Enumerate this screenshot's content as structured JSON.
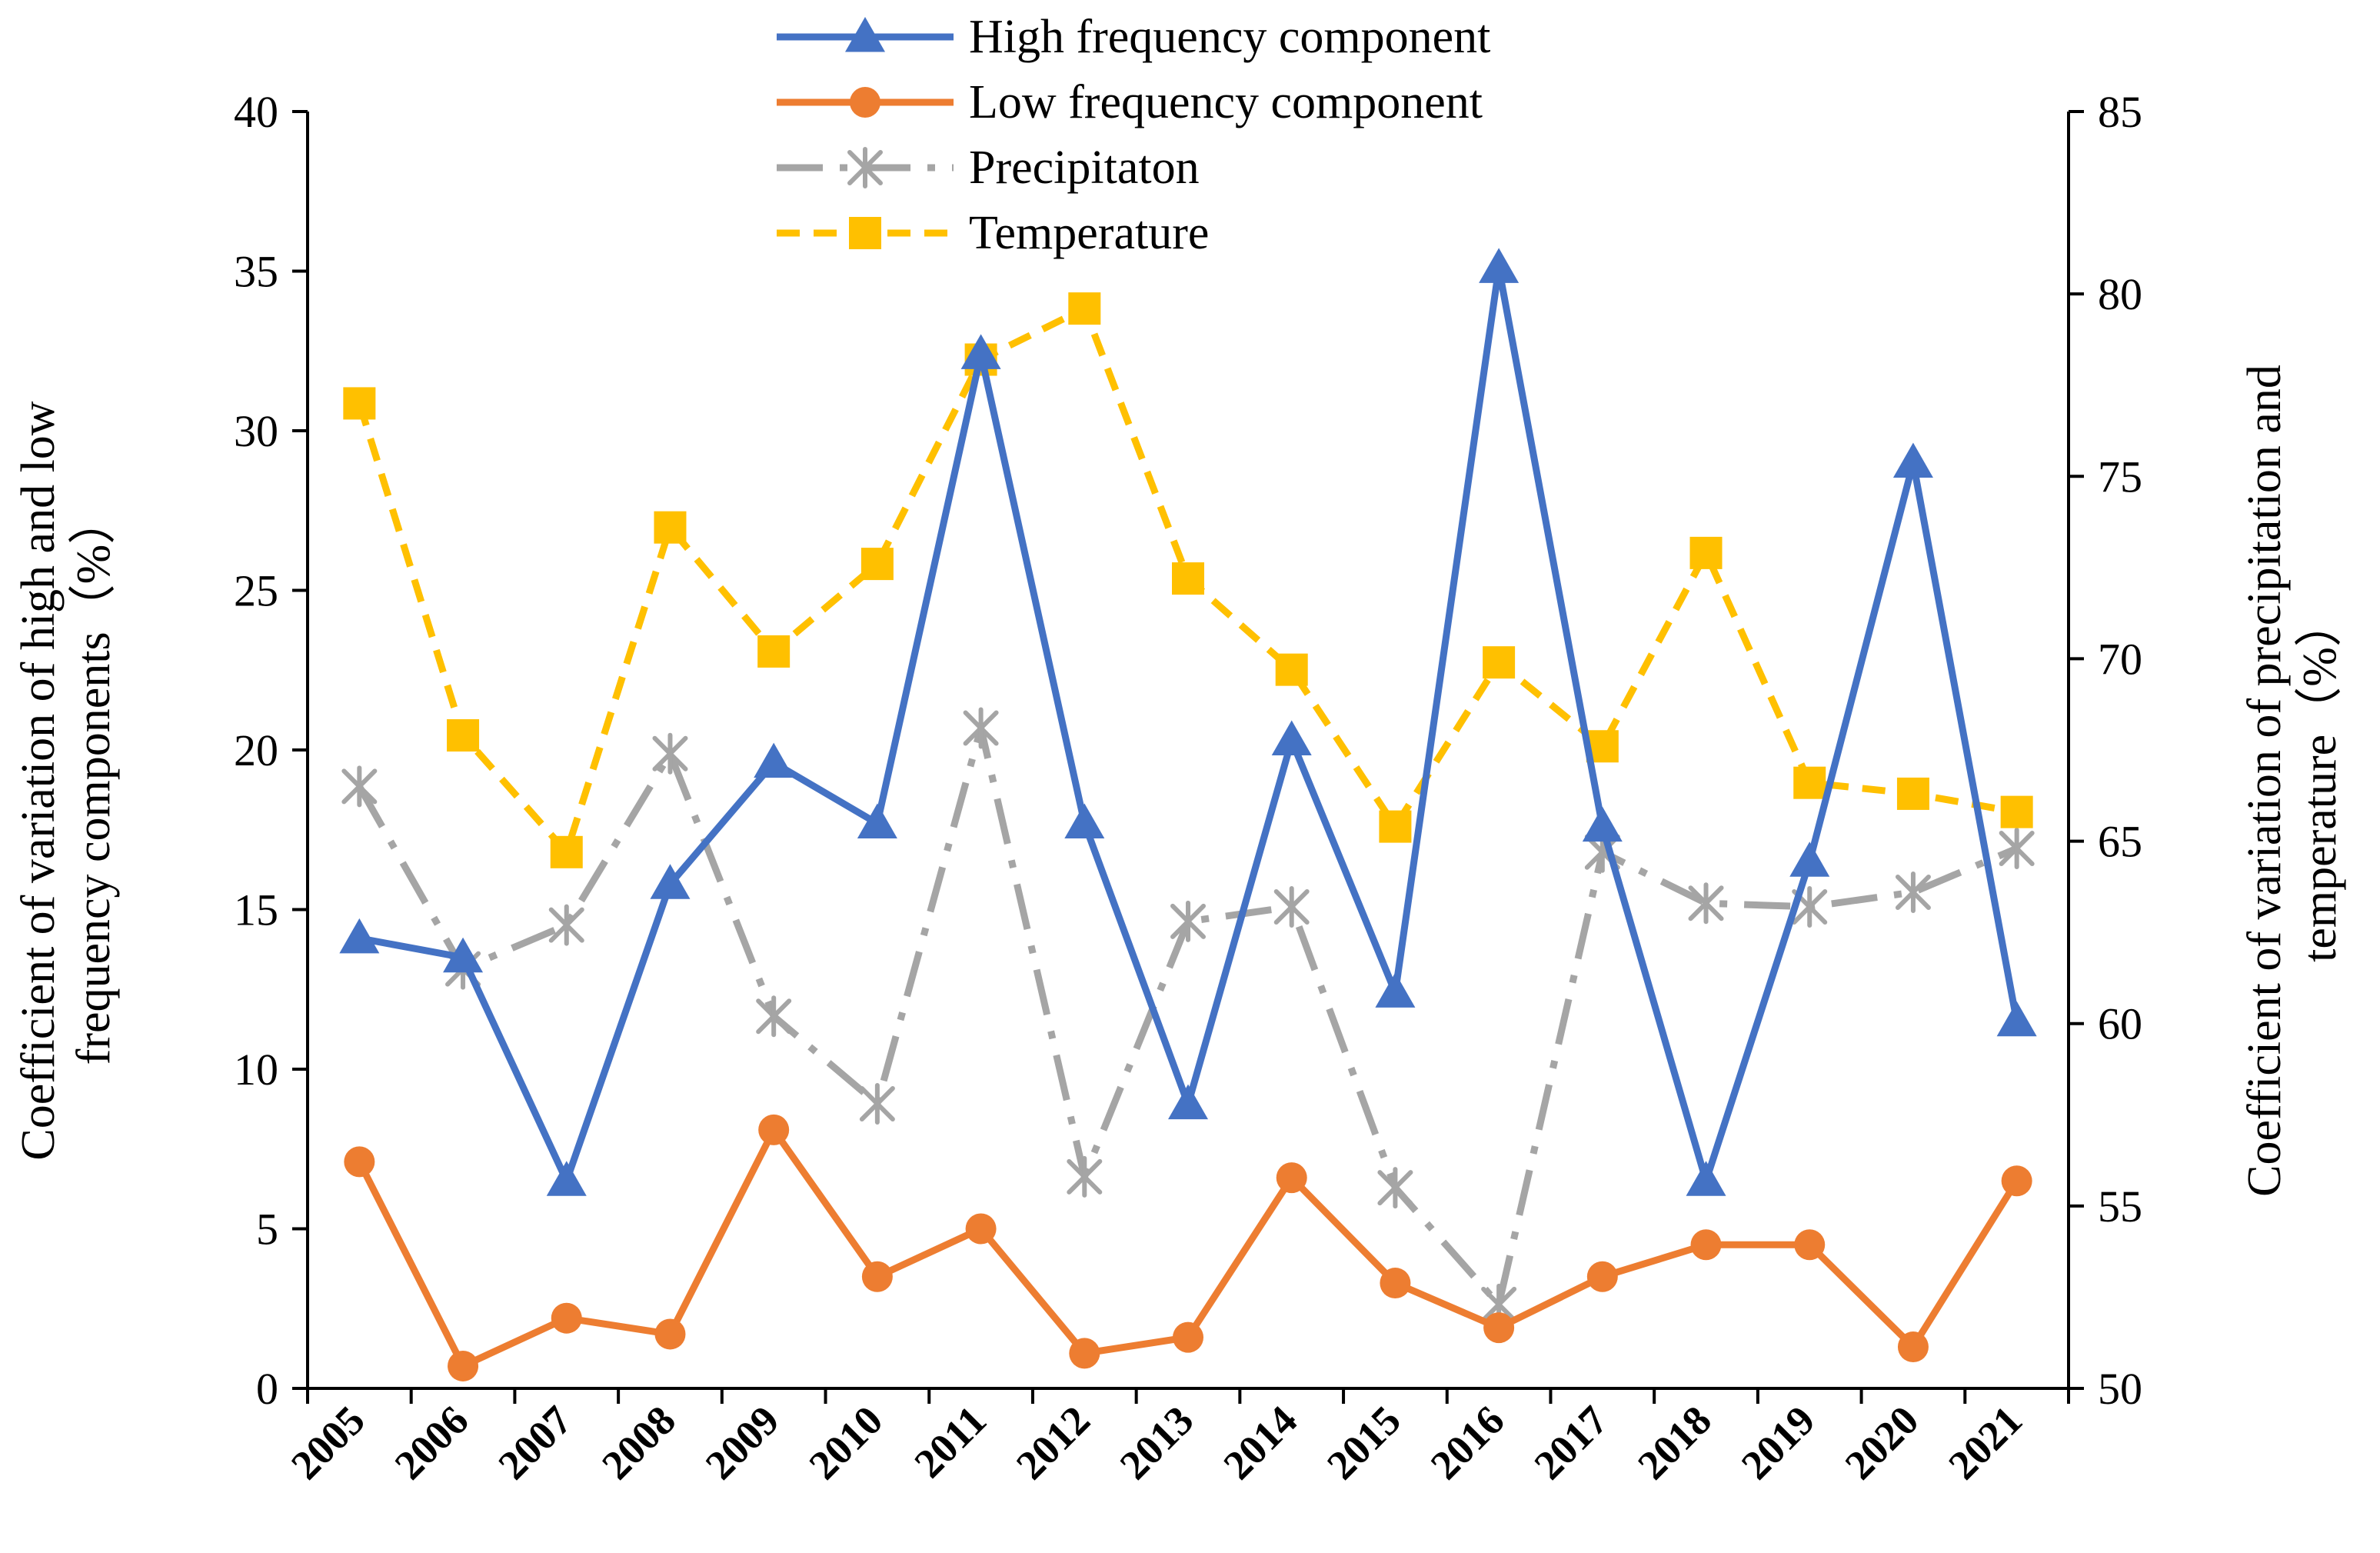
{
  "chart_data": {
    "type": "line",
    "categories": [
      "2005",
      "2006",
      "2007",
      "2008",
      "2009",
      "2010",
      "2011",
      "2012",
      "2013",
      "2014",
      "2015",
      "2016",
      "2017",
      "2018",
      "2019",
      "2020",
      "2021"
    ],
    "left_axis": {
      "label_line1": "Coefficient of variation of high and low",
      "label_line2": "frequency components（%）",
      "ylim": [
        0,
        40
      ],
      "ticks": [
        "0",
        "5",
        "10",
        "15",
        "20",
        "25",
        "30",
        "35",
        "40"
      ]
    },
    "right_axis": {
      "label_line1": "Coefficient of variation of precipitation and",
      "label_line2": "temperature（%）",
      "ylim": [
        50,
        85
      ],
      "ticks": [
        "50",
        "55",
        "60",
        "65",
        "70",
        "75",
        "80",
        "85"
      ]
    },
    "series": [
      {
        "name": "High frequency component",
        "axis": "left",
        "color": "#4472C4",
        "marker": "triangle",
        "dash": "solid",
        "values": [
          14.1,
          13.5,
          6.5,
          15.8,
          19.6,
          17.7,
          32.4,
          17.7,
          8.9,
          20.3,
          12.4,
          35.1,
          17.6,
          6.5,
          16.5,
          29.0,
          11.5
        ]
      },
      {
        "name": "Low frequency component",
        "axis": "left",
        "color": "#ED7D31",
        "marker": "circle",
        "dash": "solid",
        "values": [
          7.1,
          0.7,
          2.2,
          1.7,
          8.1,
          3.5,
          5.0,
          1.1,
          1.6,
          6.6,
          3.3,
          1.9,
          3.5,
          4.5,
          4.5,
          1.3,
          6.5
        ]
      },
      {
        "name": "Precipitaton",
        "axis": "right",
        "color": "#A5A5A5",
        "marker": "asterisk",
        "dash": "dashdot",
        "values": [
          66.5,
          61.5,
          62.7,
          67.4,
          60.2,
          57.8,
          68.1,
          55.8,
          62.8,
          63.2,
          55.5,
          52.3,
          64.7,
          63.3,
          63.2,
          63.6,
          64.8
        ]
      },
      {
        "name": "Temperature",
        "axis": "right",
        "color": "#FFC000",
        "marker": "square",
        "dash": "dash",
        "values": [
          77.0,
          67.9,
          64.7,
          73.6,
          70.2,
          72.6,
          78.2,
          79.6,
          72.2,
          69.7,
          65.4,
          69.9,
          67.6,
          72.9,
          66.6,
          66.3,
          65.8
        ]
      }
    ]
  }
}
